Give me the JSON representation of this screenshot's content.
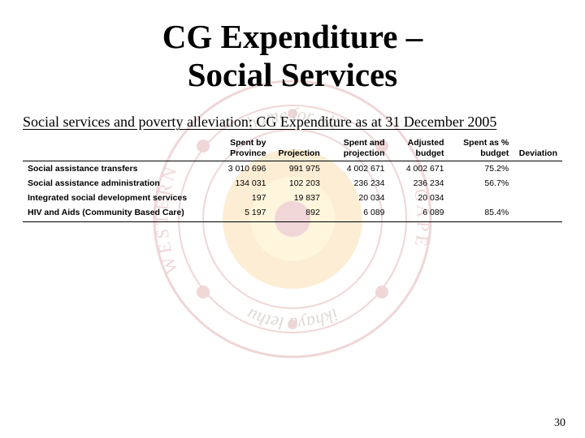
{
  "watermark": {
    "outer_color": "#b0222a",
    "mid_color": "#f0a01a",
    "inner_color": "#ffd24a",
    "text_color": "#4a2a10",
    "top_text": "home for all",
    "bottom_text": "ikhaya lethu",
    "left_text": "WESTERN",
    "right_text": "CAPE"
  },
  "title_line1": "CG Expenditure –",
  "title_line2": "Social Services",
  "subtitle": "Social services and poverty alleviation: CG Expenditure as at 31 December 2005",
  "table": {
    "columns": [
      "",
      "Spent by Province",
      "Projection",
      "Spent and projection",
      "Adjusted budget",
      "Spent as % budget",
      "Deviation"
    ],
    "col_widths": [
      "34%",
      "12%",
      "10%",
      "12%",
      "11%",
      "12%",
      "9%"
    ],
    "rows": [
      {
        "label": "Social assistance transfers",
        "cells": [
          "3 010 696",
          "991 975",
          "4 002 671",
          "4 002 671",
          "75.2%",
          ""
        ]
      },
      {
        "label": "Social assistance administration",
        "cells": [
          "134 031",
          "102 203",
          "236 234",
          "236 234",
          "56.7%",
          ""
        ]
      },
      {
        "label": "Integrated social development services",
        "cells": [
          "197",
          "19 837",
          "20 034",
          "20 034",
          "",
          ""
        ]
      },
      {
        "label": "HIV and Aids (Community Based Care)",
        "cells": [
          "5 197",
          "892",
          "6 089",
          "6 089",
          "85.4%",
          ""
        ]
      }
    ]
  },
  "page_number": "30"
}
